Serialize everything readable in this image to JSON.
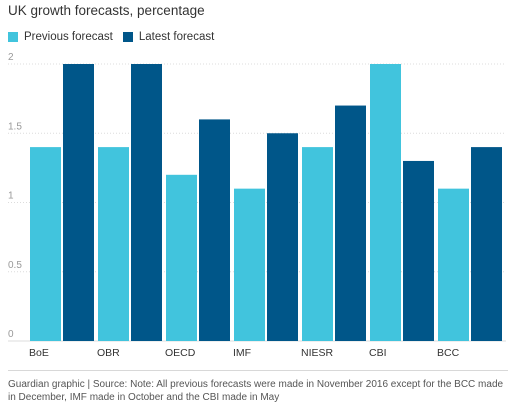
{
  "title": "UK growth forecasts, percentage",
  "legend": {
    "previous_label": "Previous forecast",
    "latest_label": "Latest forecast"
  },
  "colors": {
    "previous": "#41c4dd",
    "latest": "#005689",
    "grid": "#dcdcdc",
    "tick_text": "#999999",
    "category_text": "#333333"
  },
  "chart_data": {
    "type": "bar",
    "title": "UK growth forecasts, percentage",
    "categories": [
      "BoE",
      "OBR",
      "OECD",
      "IMF",
      "NIESR",
      "CBI",
      "BCC"
    ],
    "series": [
      {
        "name": "Previous forecast",
        "values": [
          1.4,
          1.4,
          1.2,
          1.1,
          1.4,
          2.0,
          1.1
        ]
      },
      {
        "name": "Latest forecast",
        "values": [
          2.0,
          2.0,
          1.6,
          1.5,
          1.7,
          1.3,
          1.4
        ]
      }
    ],
    "ylim": [
      0,
      2
    ],
    "yticks": [
      "0",
      "0.5",
      "1",
      "1.5",
      "2"
    ],
    "grid": true,
    "legend_position": "top-left"
  },
  "footer": "Guardian graphic | Source: Note: All previous forecasts were made in November 2016 except for the BCC made in December, IMF made in October and the CBI made in May"
}
